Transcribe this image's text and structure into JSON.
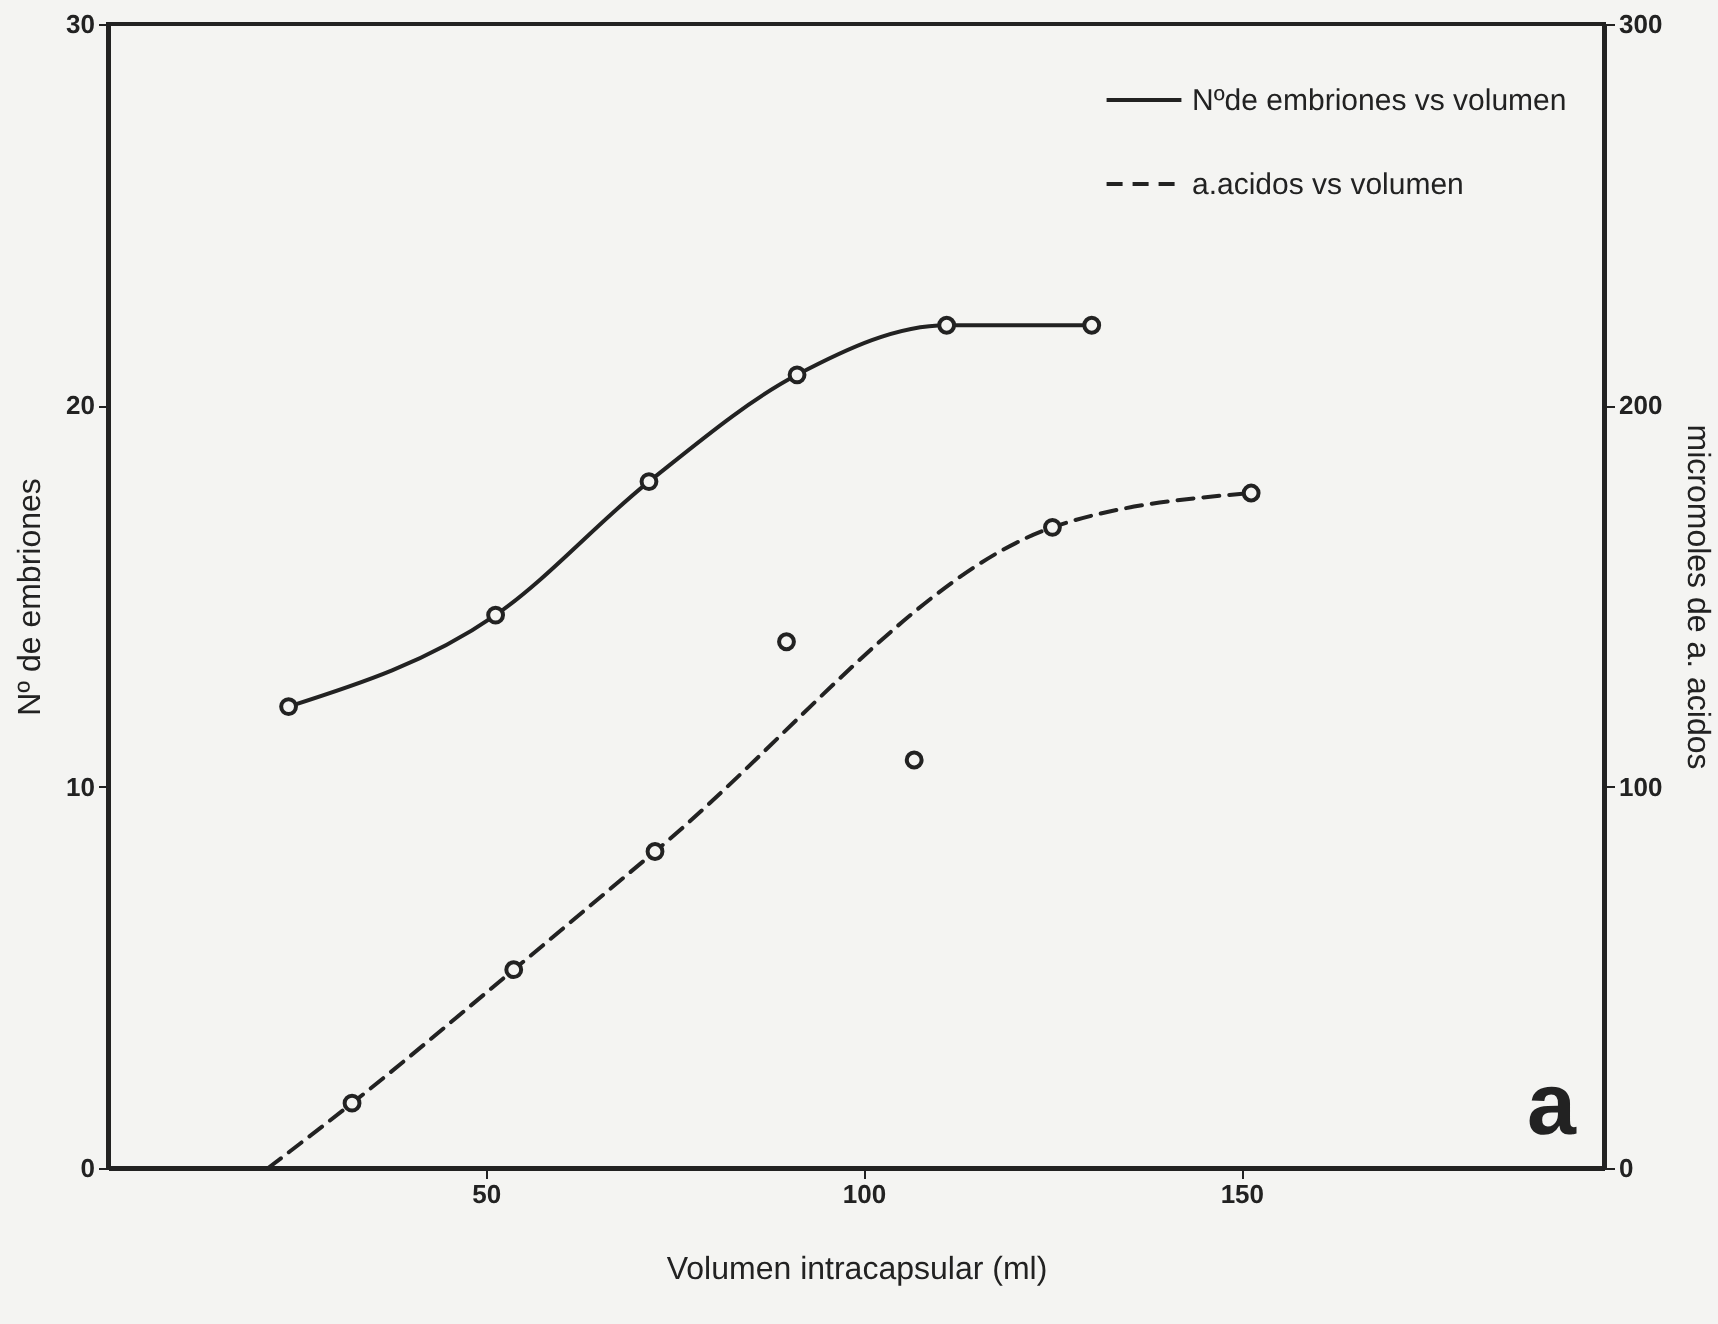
{
  "chart_data": {
    "type": "line",
    "xlabel": "Volumen  intracapsular (ml)",
    "ylabel": "Nº de embriones",
    "y2label": "micromoles de  a. acidos",
    "xlim": [
      0,
      198
    ],
    "xticks": [
      50,
      100,
      150
    ],
    "ylim": [
      0,
      30
    ],
    "yticks": [
      0,
      10,
      20,
      30
    ],
    "y2lim": [
      0,
      300
    ],
    "y2ticks": [
      0,
      100,
      200,
      300
    ],
    "series": [
      {
        "name": "Nºde embriones vs volumen",
        "color": "#222222",
        "line_style": "solid",
        "marker": "circle",
        "x": [
          23.9,
          51.3,
          71.6,
          91.2,
          111,
          130.2
        ],
        "values": [
          12.1,
          14.5,
          18,
          20.8,
          22.1,
          22.1
        ]
      },
      {
        "name": "a.acidos vs volumen",
        "color": "#222222",
        "axis": "y2",
        "line_style": "dashed",
        "marker": "none",
        "x": [
          21.2,
          32.3,
          53.7,
          72.4,
          125,
          151.3
        ],
        "values": [
          0,
          17,
          52,
          83,
          168,
          177
        ]
      },
      {
        "type": "scatter",
        "color": "#222222",
        "axis": "y2",
        "marker": "circle",
        "x": [
          32.3,
          53.7,
          72.4,
          89.8,
          106.7,
          125,
          151.3
        ],
        "values": [
          17,
          52,
          83,
          138,
          107,
          168,
          177
        ]
      }
    ],
    "legend": "top right",
    "annotations": [
      "a"
    ]
  }
}
